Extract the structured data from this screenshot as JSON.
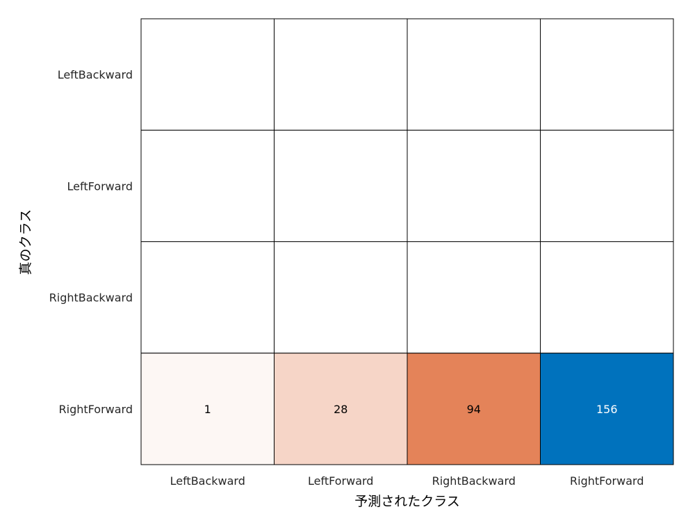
{
  "chart_data": {
    "type": "heatmap",
    "xlabel": "予測されたクラス",
    "ylabel": "真のクラス",
    "x_categories": [
      "LeftBackward",
      "LeftForward",
      "RightBackward",
      "RightForward"
    ],
    "y_categories": [
      "LeftBackward",
      "LeftForward",
      "RightBackward",
      "RightForward"
    ],
    "matrix": [
      [
        null,
        null,
        null,
        null
      ],
      [
        null,
        null,
        null,
        null
      ],
      [
        null,
        null,
        null,
        null
      ],
      [
        1,
        28,
        94,
        156
      ]
    ],
    "colors": {
      "diagonal": "#0072bd",
      "off_diagonal_max": "#d95319",
      "empty": "#ffffff",
      "grid": "#000000",
      "text_dark": "#000000",
      "text_light": "#ffffff"
    }
  }
}
